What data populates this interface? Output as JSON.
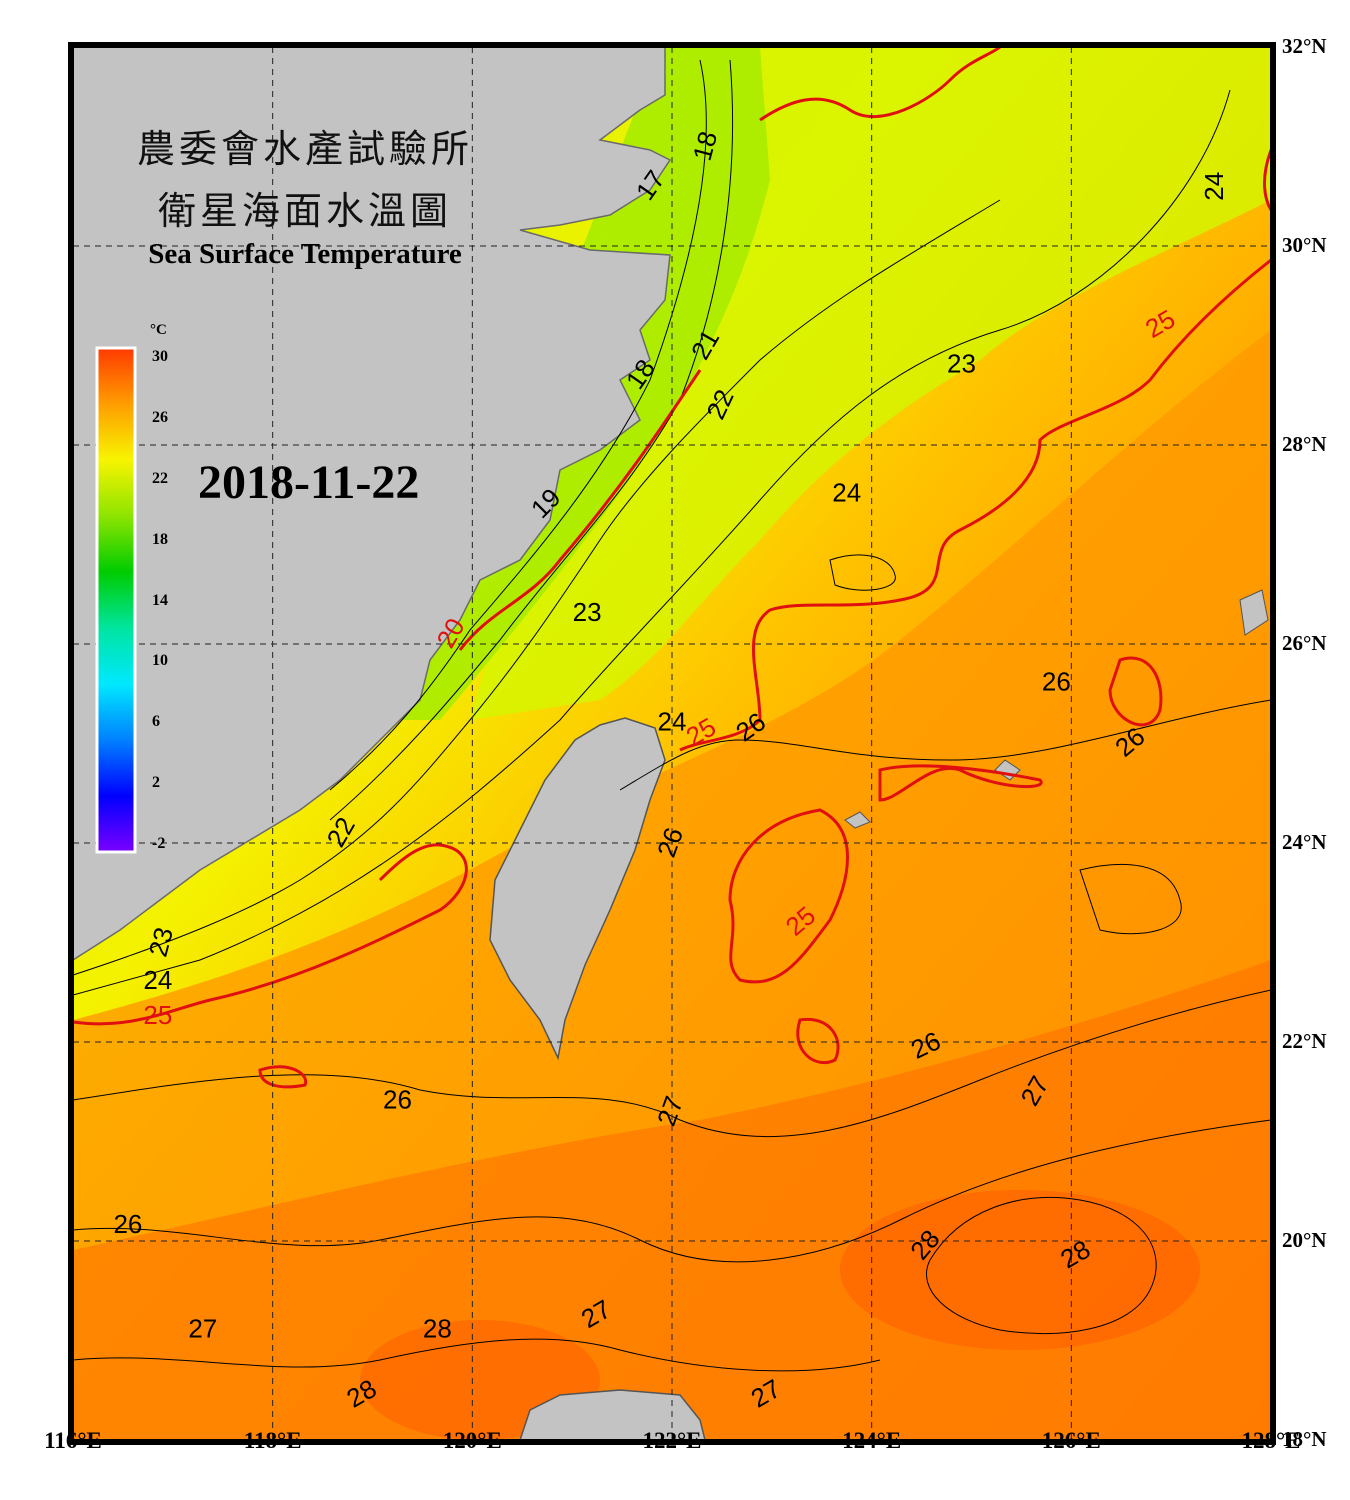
{
  "title": {
    "agency_zh": "農委會水產試驗所",
    "subtitle_zh": "衛星海面水溫圖",
    "subtitle_en": "Sea Surface Temperature"
  },
  "date": "2018-11-22",
  "colorbar": {
    "unit": "°C",
    "ticks": [
      "30",
      "26",
      "22",
      "18",
      "14",
      "10",
      "6",
      "2",
      "-2"
    ],
    "colors": [
      "#ff3a00",
      "#ff9d00",
      "#f7f400",
      "#8ee400",
      "#00cc00",
      "#00e5a0",
      "#00e8ff",
      "#0080ff",
      "#0000ff",
      "#7a00ff"
    ]
  },
  "lat_labels": [
    "32°N",
    "30°N",
    "28°N",
    "26°N",
    "24°N",
    "22°N",
    "20°N",
    "18°N"
  ],
  "lon_labels": [
    "116°E",
    "118°E",
    "120°E",
    "122°E",
    "124°E",
    "126°E",
    "128°E"
  ],
  "isotherm_labels": [
    {
      "text": "17",
      "lon": 121.8,
      "lat": 30.6,
      "rot": -55
    },
    {
      "text": "18",
      "lon": 122.35,
      "lat": 31.0,
      "rot": -75
    },
    {
      "text": "24",
      "lon": 127.45,
      "lat": 30.6,
      "rot": -90
    },
    {
      "text": "25",
      "lon": 126.9,
      "lat": 29.2,
      "rot": -30
    },
    {
      "text": "21",
      "lon": 122.35,
      "lat": 29.0,
      "rot": -60
    },
    {
      "text": "18",
      "lon": 121.7,
      "lat": 28.7,
      "rot": -55
    },
    {
      "text": "22",
      "lon": 122.5,
      "lat": 28.4,
      "rot": -65
    },
    {
      "text": "23",
      "lon": 124.9,
      "lat": 28.8,
      "rot": 0
    },
    {
      "text": "24",
      "lon": 123.75,
      "lat": 27.5,
      "rot": 0
    },
    {
      "text": "19",
      "lon": 120.75,
      "lat": 27.4,
      "rot": -45
    },
    {
      "text": "20",
      "lon": 119.8,
      "lat": 26.1,
      "rot": -60
    },
    {
      "text": "23",
      "lon": 121.15,
      "lat": 26.3,
      "rot": 0
    },
    {
      "text": "24",
      "lon": 122.0,
      "lat": 25.2,
      "rot": 0
    },
    {
      "text": "25",
      "lon": 122.3,
      "lat": 25.1,
      "rot": -30
    },
    {
      "text": "26",
      "lon": 122.8,
      "lat": 25.15,
      "rot": -35
    },
    {
      "text": "26",
      "lon": 125.85,
      "lat": 25.6,
      "rot": 0
    },
    {
      "text": "26",
      "lon": 126.6,
      "lat": 25.0,
      "rot": -40
    },
    {
      "text": "22",
      "lon": 118.7,
      "lat": 24.1,
      "rot": -60
    },
    {
      "text": "26",
      "lon": 122.0,
      "lat": 24.0,
      "rot": -70
    },
    {
      "text": "25",
      "lon": 123.3,
      "lat": 23.2,
      "rot": -40
    },
    {
      "text": "23",
      "lon": 116.9,
      "lat": 23.0,
      "rot": -75
    },
    {
      "text": "24",
      "lon": 116.85,
      "lat": 22.6,
      "rot": 0
    },
    {
      "text": "25",
      "lon": 116.85,
      "lat": 22.25,
      "rot": 0,
      "red": true
    },
    {
      "text": "26",
      "lon": 124.55,
      "lat": 21.95,
      "rot": -25
    },
    {
      "text": "27",
      "lon": 125.65,
      "lat": 21.5,
      "rot": -60
    },
    {
      "text": "26",
      "lon": 119.25,
      "lat": 21.4,
      "rot": 0
    },
    {
      "text": "27",
      "lon": 122.0,
      "lat": 21.3,
      "rot": -70
    },
    {
      "text": "26",
      "lon": 116.55,
      "lat": 20.15,
      "rot": 0
    },
    {
      "text": "28",
      "lon": 124.55,
      "lat": 19.95,
      "rot": -50
    },
    {
      "text": "28",
      "lon": 126.05,
      "lat": 19.85,
      "rot": -30
    },
    {
      "text": "27",
      "lon": 117.3,
      "lat": 19.1,
      "rot": 0
    },
    {
      "text": "28",
      "lon": 119.65,
      "lat": 19.1,
      "rot": 0
    },
    {
      "text": "27",
      "lon": 121.25,
      "lat": 19.25,
      "rot": -30
    },
    {
      "text": "28",
      "lon": 118.9,
      "lat": 18.45,
      "rot": -30
    },
    {
      "text": "27",
      "lon": 122.95,
      "lat": 18.45,
      "rot": -30
    }
  ]
}
